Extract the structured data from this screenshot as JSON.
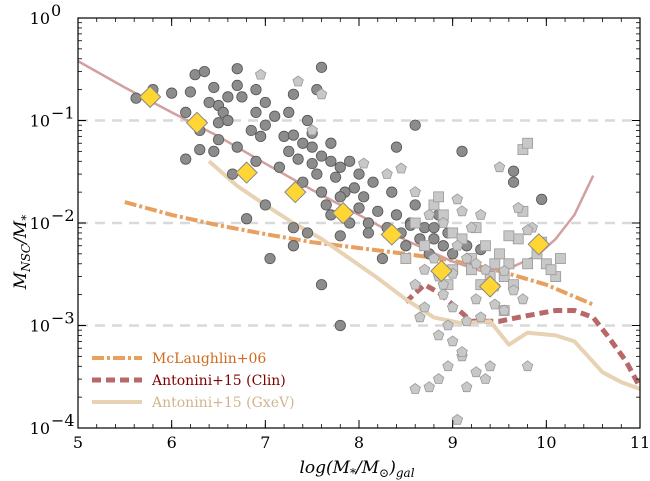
{
  "chart_data": {
    "type": "scatter",
    "xlabel": "log(M*/M⊙)gal",
    "ylabel": "MNSC/M*",
    "xlim": [
      5,
      11
    ],
    "ylim": [
      0.0001,
      1
    ],
    "yscale": "log",
    "x_ticks": [
      5,
      6,
      7,
      8,
      9,
      10,
      11
    ],
    "x_tick_labels": [
      "5",
      "6",
      "7",
      "8",
      "9",
      "10",
      "11"
    ],
    "y_ticks": [
      {
        "value": 0.0001,
        "base": "10",
        "exp": "−4"
      },
      {
        "value": 0.001,
        "base": "10",
        "exp": "−3"
      },
      {
        "value": 0.01,
        "base": "10",
        "exp": "−2"
      },
      {
        "value": 0.1,
        "base": "10",
        "exp": "−1"
      },
      {
        "value": 1,
        "base": "10",
        "exp": "0"
      }
    ],
    "grid": "horizontal dashed at each decade",
    "legend_position": "bottom-left",
    "legend": [
      {
        "label": "McLaughlin+06",
        "color": "#e8a060",
        "text_color": "#d2691e",
        "style": "dash-dot"
      },
      {
        "label": "Antonini+15 (Clin)",
        "color": "#b86868",
        "text_color": "#800000",
        "style": "dashed"
      },
      {
        "label": "Antonini+15 (GxeV)",
        "color": "#e8d2b4",
        "text_color": "#d2b48c",
        "style": "solid"
      }
    ],
    "series": [
      {
        "marker": "circle",
        "color": "#8c8c8c",
        "points": [
          [
            5.62,
            0.165
          ],
          [
            5.8,
            0.2
          ],
          [
            6.0,
            0.185
          ],
          [
            6.2,
            0.19
          ],
          [
            6.25,
            0.28
          ],
          [
            6.35,
            0.3
          ],
          [
            6.45,
            0.21
          ],
          [
            6.5,
            0.14
          ],
          [
            6.55,
            0.12
          ],
          [
            6.6,
            0.17
          ],
          [
            6.7,
            0.22
          ],
          [
            6.4,
            0.15
          ],
          [
            6.7,
            0.32
          ],
          [
            6.15,
            0.12
          ],
          [
            6.3,
            0.08
          ],
          [
            6.5,
            0.095
          ],
          [
            6.6,
            0.1
          ],
          [
            6.75,
            0.17
          ],
          [
            6.9,
            0.2
          ],
          [
            7.0,
            0.15
          ],
          [
            7.1,
            0.11
          ],
          [
            7.2,
            0.07
          ],
          [
            6.95,
            0.07
          ],
          [
            6.85,
            0.08
          ],
          [
            6.7,
            0.055
          ],
          [
            6.5,
            0.065
          ],
          [
            6.45,
            0.05
          ],
          [
            6.3,
            0.052
          ],
          [
            6.15,
            0.042
          ],
          [
            6.65,
            0.03
          ],
          [
            6.9,
            0.04
          ],
          [
            6.9,
            0.12
          ],
          [
            7.0,
            0.09
          ],
          [
            7.15,
            0.035
          ],
          [
            7.25,
            0.05
          ],
          [
            7.3,
            0.072
          ],
          [
            7.4,
            0.06
          ],
          [
            7.35,
            0.042
          ],
          [
            7.4,
            0.025
          ],
          [
            7.5,
            0.038
          ],
          [
            7.5,
            0.075
          ],
          [
            7.55,
            0.2
          ],
          [
            7.6,
            0.33
          ],
          [
            7.3,
            0.18
          ],
          [
            7.25,
            0.12
          ],
          [
            7.45,
            0.1
          ],
          [
            7.5,
            0.055
          ],
          [
            7.6,
            0.045
          ],
          [
            7.55,
            0.03
          ],
          [
            7.7,
            0.04
          ],
          [
            7.7,
            0.06
          ],
          [
            7.75,
            0.028
          ],
          [
            7.8,
            0.035
          ],
          [
            7.85,
            0.02
          ],
          [
            7.9,
            0.04
          ],
          [
            7.95,
            0.022
          ],
          [
            7.6,
            0.02
          ],
          [
            7.65,
            0.015
          ],
          [
            7.7,
            0.012
          ],
          [
            7.8,
            0.018
          ],
          [
            7.9,
            0.01
          ],
          [
            8.0,
            0.014
          ],
          [
            8.05,
            0.018
          ],
          [
            8.1,
            0.01
          ],
          [
            8.15,
            0.025
          ],
          [
            8.0,
            0.03
          ],
          [
            8.1,
            0.008
          ],
          [
            8.2,
            0.013
          ],
          [
            8.3,
            0.009
          ],
          [
            8.35,
            0.02
          ],
          [
            8.4,
            0.012
          ],
          [
            8.45,
            0.008
          ],
          [
            8.5,
            0.006
          ],
          [
            8.55,
            0.01
          ],
          [
            8.6,
            0.015
          ],
          [
            8.65,
            0.007
          ],
          [
            8.7,
            0.009
          ],
          [
            8.75,
            0.005
          ],
          [
            8.8,
            0.007
          ],
          [
            8.85,
            0.012
          ],
          [
            8.9,
            0.006
          ],
          [
            8.95,
            0.008
          ],
          [
            9.0,
            0.005
          ],
          [
            8.6,
            0.09
          ],
          [
            8.4,
            0.055
          ],
          [
            9.15,
            0.006
          ],
          [
            7.05,
            0.0045
          ],
          [
            7.3,
            0.006
          ],
          [
            7.45,
            0.008
          ],
          [
            7.6,
            0.0025
          ],
          [
            7.8,
            0.001
          ],
          [
            8.25,
            0.0045
          ],
          [
            7.0,
            0.015
          ],
          [
            6.8,
            0.011
          ],
          [
            8.8,
            0.009
          ],
          [
            9.1,
            0.05
          ],
          [
            9.65,
            0.032
          ],
          [
            9.65,
            0.025
          ],
          [
            9.95,
            0.017
          ],
          [
            9.3,
            0.0055
          ],
          [
            8.55,
            0.0095
          ],
          [
            7.8,
            0.0075
          ],
          [
            7.3,
            0.009
          ]
        ]
      },
      {
        "marker": "square",
        "color": "#c8c8c8",
        "points": [
          [
            8.5,
            0.0045
          ],
          [
            8.6,
            0.01
          ],
          [
            8.8,
            0.015
          ],
          [
            8.9,
            0.012
          ],
          [
            8.85,
            0.018
          ],
          [
            9.0,
            0.008
          ],
          [
            9.1,
            0.007
          ],
          [
            9.25,
            0.009
          ],
          [
            9.35,
            0.006
          ],
          [
            9.45,
            0.004
          ],
          [
            9.55,
            0.003
          ],
          [
            9.65,
            0.0025
          ],
          [
            9.75,
            0.013
          ],
          [
            9.9,
            0.005
          ],
          [
            9.7,
            0.007
          ],
          [
            9.8,
            0.004
          ],
          [
            10.0,
            0.004
          ],
          [
            10.1,
            0.003
          ],
          [
            10.15,
            0.0045
          ],
          [
            9.6,
            0.004
          ],
          [
            9.5,
            0.005
          ],
          [
            9.4,
            0.003
          ],
          [
            9.3,
            0.0025
          ],
          [
            9.2,
            0.0045
          ],
          [
            9.0,
            0.0035
          ],
          [
            8.95,
            0.0025
          ],
          [
            9.75,
            0.052
          ],
          [
            9.95,
            0.0065
          ],
          [
            10.05,
            0.0035
          ],
          [
            9.55,
            0.0014
          ],
          [
            9.2,
            0.0035
          ],
          [
            8.7,
            0.006
          ],
          [
            9.6,
            0.0075
          ],
          [
            9.8,
            0.06
          ]
        ]
      },
      {
        "marker": "pentagon",
        "color": "#c8c8c8",
        "points": [
          [
            6.95,
            0.28
          ],
          [
            7.35,
            0.24
          ],
          [
            7.6,
            0.18
          ],
          [
            7.5,
            0.08
          ],
          [
            8.05,
            0.038
          ],
          [
            8.3,
            0.03
          ],
          [
            8.45,
            0.034
          ],
          [
            8.6,
            0.02
          ],
          [
            8.75,
            0.012
          ],
          [
            8.9,
            0.01
          ],
          [
            9.05,
            0.017
          ],
          [
            9.1,
            0.013
          ],
          [
            9.2,
            0.009
          ],
          [
            9.3,
            0.012
          ],
          [
            9.05,
            0.006
          ],
          [
            9.15,
            0.0045
          ],
          [
            9.25,
            0.004
          ],
          [
            9.35,
            0.0035
          ],
          [
            8.85,
            0.003
          ],
          [
            8.8,
            0.0045
          ],
          [
            8.7,
            0.0035
          ],
          [
            8.6,
            0.0025
          ],
          [
            8.9,
            0.002
          ],
          [
            9.0,
            0.0015
          ],
          [
            8.95,
            0.001
          ],
          [
            8.85,
            0.0008
          ],
          [
            9.0,
            0.0007
          ],
          [
            9.1,
            0.0005
          ],
          [
            8.95,
            0.0004
          ],
          [
            8.85,
            0.0003
          ],
          [
            8.6,
            0.00024
          ],
          [
            8.75,
            0.00025
          ],
          [
            9.15,
            0.00025
          ],
          [
            9.05,
            0.00012
          ],
          [
            9.25,
            0.00035
          ],
          [
            9.4,
            0.0004
          ],
          [
            9.55,
            0.0014
          ],
          [
            9.8,
            0.0004
          ],
          [
            9.45,
            0.0016
          ],
          [
            9.3,
            0.0012
          ],
          [
            9.1,
            0.00055
          ],
          [
            9.0,
            0.0032
          ],
          [
            9.45,
            0.0024
          ],
          [
            9.55,
            0.0034
          ],
          [
            9.65,
            0.0022
          ],
          [
            9.75,
            0.0018
          ],
          [
            9.85,
            0.009
          ],
          [
            9.35,
            0.0003
          ],
          [
            8.9,
            0.0025
          ],
          [
            9.25,
            0.0018
          ],
          [
            8.7,
            0.0015
          ],
          [
            9.5,
            0.035
          ],
          [
            9.7,
            0.014
          ],
          [
            8.65,
            0.0012
          ],
          [
            9.8,
            0.0085
          ],
          [
            9.15,
            0.0011
          ]
        ]
      },
      {
        "marker": "diamond",
        "color": "#ffd633",
        "points": [
          [
            5.77,
            0.17
          ],
          [
            6.27,
            0.095
          ],
          [
            6.8,
            0.031
          ],
          [
            7.32,
            0.02
          ],
          [
            7.83,
            0.0125
          ],
          [
            8.35,
            0.0077
          ],
          [
            8.88,
            0.0034
          ],
          [
            9.4,
            0.0024
          ],
          [
            9.92,
            0.0062
          ]
        ]
      }
    ],
    "lines": [
      {
        "name": "McLaughlin+06",
        "color": "#e8a060",
        "style": "dash-dot",
        "points": [
          [
            5.5,
            0.016
          ],
          [
            6,
            0.012
          ],
          [
            6.5,
            0.0095
          ],
          [
            7,
            0.0078
          ],
          [
            7.5,
            0.0065
          ],
          [
            8,
            0.0057
          ],
          [
            8.5,
            0.005
          ],
          [
            9,
            0.0043
          ],
          [
            9.5,
            0.0034
          ],
          [
            10,
            0.0025
          ],
          [
            10.5,
            0.0016
          ]
        ]
      },
      {
        "name": "Antonini+15 (Clin)",
        "color": "#b86868",
        "style": "dashed",
        "points": [
          [
            8.5,
            0.0017
          ],
          [
            8.7,
            0.0025
          ],
          [
            8.85,
            0.0021
          ],
          [
            9.0,
            0.0016
          ],
          [
            9.2,
            0.0011
          ],
          [
            9.5,
            0.0011
          ],
          [
            9.7,
            0.0012
          ],
          [
            9.9,
            0.0013
          ],
          [
            10.1,
            0.0014
          ],
          [
            10.3,
            0.0014
          ],
          [
            10.5,
            0.0012
          ],
          [
            10.65,
            0.0008
          ],
          [
            10.85,
            0.00045
          ],
          [
            11.0,
            0.00025
          ]
        ]
      },
      {
        "name": "Antonini+15 (GxeV)",
        "color": "#e8d2b4",
        "style": "solid",
        "points": [
          [
            6.4,
            0.04
          ],
          [
            6.7,
            0.023
          ],
          [
            7,
            0.015
          ],
          [
            7.3,
            0.01
          ],
          [
            7.6,
            0.007
          ],
          [
            7.9,
            0.0045
          ],
          [
            8.2,
            0.0029
          ],
          [
            8.5,
            0.0018
          ],
          [
            8.8,
            0.0012
          ],
          [
            9.1,
            0.00105
          ],
          [
            9.4,
            0.0011
          ],
          [
            9.6,
            0.00065
          ],
          [
            9.8,
            0.00085
          ],
          [
            10.1,
            0.0008
          ],
          [
            10.3,
            0.0007
          ],
          [
            10.6,
            0.00035
          ],
          [
            10.8,
            0.00028
          ],
          [
            11.0,
            0.00024
          ]
        ]
      },
      {
        "name": "fit",
        "color": "#d2a0a0",
        "style": "solid",
        "points": [
          [
            5,
            0.38
          ],
          [
            5.5,
            0.21
          ],
          [
            6,
            0.12
          ],
          [
            6.5,
            0.07
          ],
          [
            7,
            0.038
          ],
          [
            7.5,
            0.021
          ],
          [
            8,
            0.012
          ],
          [
            8.5,
            0.0068
          ],
          [
            9,
            0.0042
          ],
          [
            9.3,
            0.0034
          ],
          [
            9.6,
            0.0036
          ],
          [
            9.9,
            0.0048
          ],
          [
            10.1,
            0.007
          ],
          [
            10.3,
            0.012
          ],
          [
            10.5,
            0.029
          ]
        ]
      }
    ]
  }
}
